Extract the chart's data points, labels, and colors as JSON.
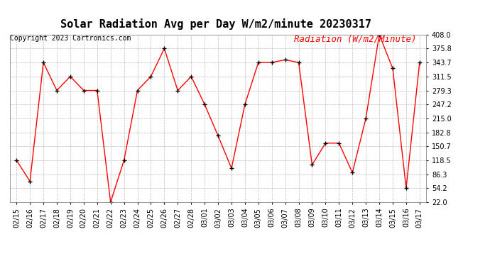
{
  "title": "Solar Radiation Avg per Day W/m2/minute 20230317",
  "copyright": "Copyright 2023 Cartronics.com",
  "legend_label": "Radiation (W/m2/Minute)",
  "dates": [
    "02/15",
    "02/16",
    "02/17",
    "02/18",
    "02/19",
    "02/20",
    "02/21",
    "02/22",
    "02/23",
    "02/24",
    "02/25",
    "02/26",
    "02/27",
    "02/28",
    "03/01",
    "03/02",
    "03/03",
    "03/04",
    "03/05",
    "03/06",
    "03/07",
    "03/08",
    "03/09",
    "03/10",
    "03/11",
    "03/12",
    "03/13",
    "03/14",
    "03/15",
    "03/16",
    "03/17"
  ],
  "values": [
    118.5,
    70.0,
    343.7,
    279.3,
    311.5,
    279.3,
    279.3,
    22.0,
    118.5,
    279.3,
    311.5,
    375.8,
    279.3,
    311.5,
    247.2,
    175.0,
    100.0,
    247.2,
    343.7,
    343.7,
    350.0,
    343.7,
    108.0,
    158.0,
    158.0,
    90.0,
    215.0,
    408.0,
    330.0,
    54.2,
    343.7
  ],
  "ylim": [
    22.0,
    408.0
  ],
  "yticks": [
    22.0,
    54.2,
    86.3,
    118.5,
    150.7,
    182.8,
    215.0,
    247.2,
    279.3,
    311.5,
    343.7,
    375.8,
    408.0
  ],
  "line_color": "red",
  "marker_color": "black",
  "grid_color": "#bbbbbb",
  "bg_color": "#ffffff",
  "title_fontsize": 11,
  "copyright_fontsize": 7,
  "legend_fontsize": 9,
  "tick_fontsize": 7
}
